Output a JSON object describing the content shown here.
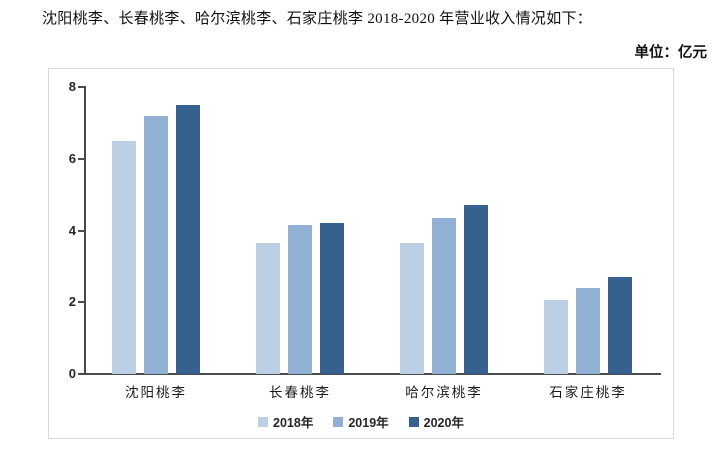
{
  "caption": "沈阳桃李、长春桃李、哈尔滨桃李、石家庄桃李 2018-2020 年营业收入情况如下：",
  "unit_label": "单位：亿元",
  "colors": {
    "series_2018": "#BCCFE5",
    "series_2019": "#92AFD4",
    "series_2020": "#36618F",
    "axis": "#4a4a4a",
    "chart_border": "#d9d9d9",
    "text": "#262626",
    "background": "#ffffff"
  },
  "chart_data": {
    "type": "bar",
    "title": "沈阳桃李、长春桃李、哈尔滨桃李、石家庄桃李 2018-2020 年营业收入情况如下：",
    "unit": "单位：亿元",
    "categories": [
      "沈阳桃李",
      "长春桃李",
      "哈尔滨桃李",
      "石家庄桃李"
    ],
    "series": [
      {
        "name": "2018年",
        "color": "#BCCFE5",
        "values": [
          6.5,
          3.65,
          3.65,
          2.05
        ]
      },
      {
        "name": "2019年",
        "color": "#92AFD4",
        "values": [
          7.2,
          4.15,
          4.35,
          2.4
        ]
      },
      {
        "name": "2020年",
        "color": "#36618F",
        "values": [
          7.5,
          4.2,
          4.7,
          2.7
        ]
      }
    ],
    "xlabel": "",
    "ylabel": "",
    "ylim": [
      0,
      8
    ],
    "yticks": [
      0,
      2,
      4,
      6,
      8
    ],
    "grid": false,
    "legend_position": "bottom"
  }
}
